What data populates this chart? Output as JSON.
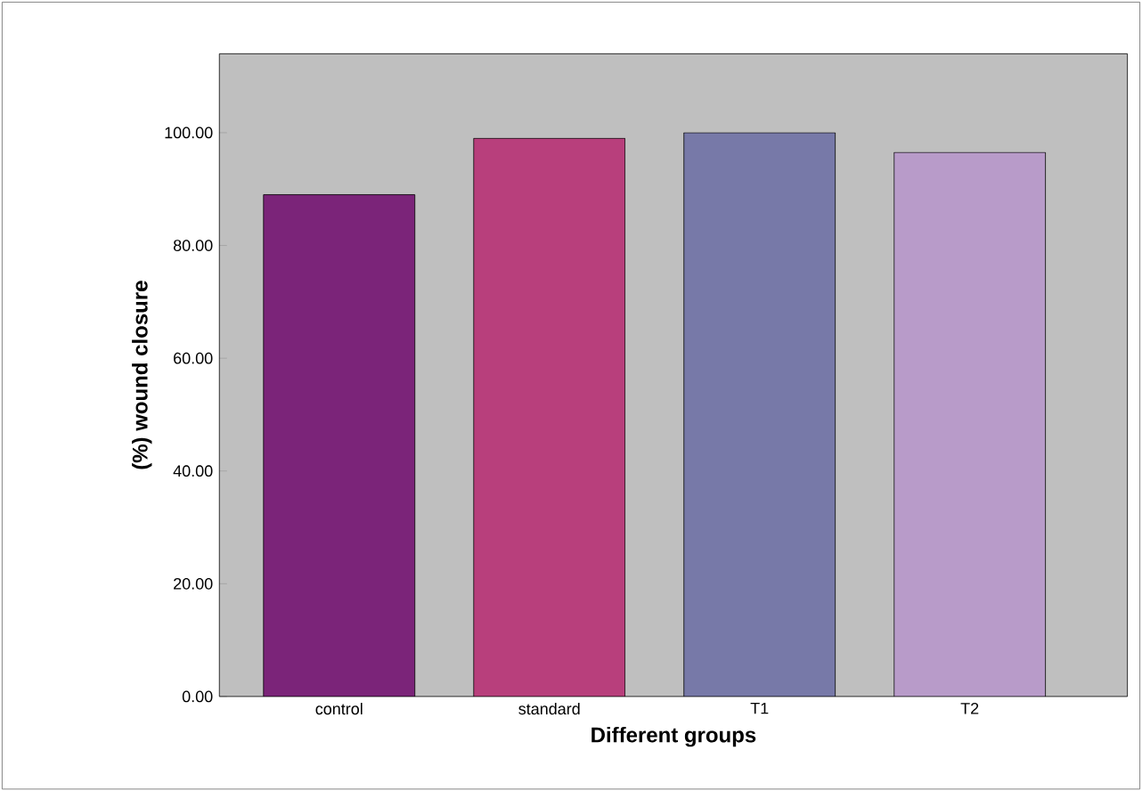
{
  "chart_data": {
    "type": "bar",
    "xlabel": "Different groups",
    "ylabel": "(%) wound closure",
    "categories": [
      "control",
      "standard",
      "T1",
      "T2"
    ],
    "values": [
      89,
      99,
      100,
      96.5
    ],
    "colors": [
      "#7b2479",
      "#b83f7c",
      "#7779a8",
      "#b89bc9"
    ],
    "ylim": [
      0,
      114
    ],
    "yticks": [
      {
        "value": 0,
        "label": "0.00"
      },
      {
        "value": 20,
        "label": "20.00"
      },
      {
        "value": 40,
        "label": "40.00"
      },
      {
        "value": 60,
        "label": "60.00"
      },
      {
        "value": 80,
        "label": "80.00"
      },
      {
        "value": 100,
        "label": "100.00"
      }
    ],
    "grid": false
  }
}
